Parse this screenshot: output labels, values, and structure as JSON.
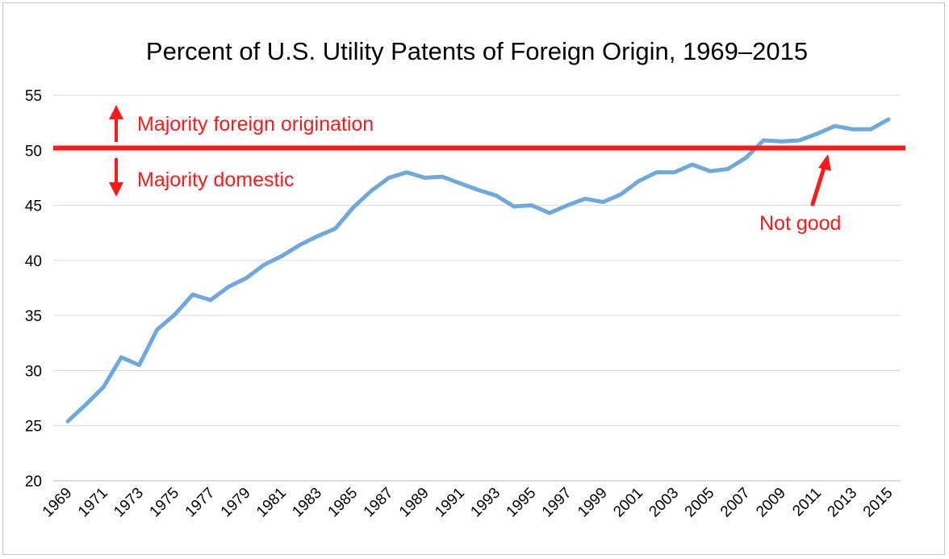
{
  "chart_data": {
    "type": "line",
    "title": "Percent of U.S. Utility Patents of Foreign Origin, 1969–2015",
    "xlabel": "",
    "ylabel": "",
    "ylim": [
      20,
      55
    ],
    "yticks": [
      "20",
      "25",
      "30",
      "35",
      "40",
      "45",
      "50",
      "55"
    ],
    "xticks": [
      "1969",
      "1971",
      "1973",
      "1975",
      "1977",
      "1979",
      "1981",
      "1983",
      "1985",
      "1987",
      "1989",
      "1991",
      "1993",
      "1995",
      "1997",
      "1999",
      "2001",
      "2003",
      "2005",
      "2007",
      "2009",
      "2011",
      "2013",
      "2015"
    ],
    "grid": true,
    "legend": "none",
    "series": [
      {
        "color": "#6fa8dc",
        "x": [
          1969,
          1970,
          1971,
          1972,
          1973,
          1974,
          1975,
          1976,
          1977,
          1978,
          1979,
          1980,
          1981,
          1982,
          1983,
          1984,
          1985,
          1986,
          1987,
          1988,
          1989,
          1990,
          1991,
          1992,
          1993,
          1994,
          1995,
          1996,
          1997,
          1998,
          1999,
          2000,
          2001,
          2002,
          2003,
          2004,
          2005,
          2006,
          2007,
          2008,
          2009,
          2010,
          2011,
          2012,
          2013,
          2014,
          2015
        ],
        "values": [
          25.4,
          26.9,
          28.5,
          31.2,
          30.5,
          33.7,
          35.1,
          36.9,
          36.4,
          37.6,
          38.4,
          39.6,
          40.4,
          41.4,
          42.2,
          42.9,
          44.8,
          46.3,
          47.5,
          48.0,
          47.5,
          47.6,
          47.0,
          46.4,
          45.9,
          44.9,
          45.0,
          44.3,
          45.0,
          45.6,
          45.3,
          46.0,
          47.2,
          48.0,
          48.0,
          48.7,
          48.1,
          48.3,
          49.3,
          50.9,
          50.8,
          50.9,
          51.5,
          52.2,
          51.9,
          51.9,
          52.8
        ]
      }
    ],
    "reference_line": {
      "value": 50.2,
      "color": "#ff1a1a"
    },
    "annotations": {
      "above": "Majority foreign origination",
      "below": "Majority domestic",
      "pointer": "Not good"
    }
  }
}
